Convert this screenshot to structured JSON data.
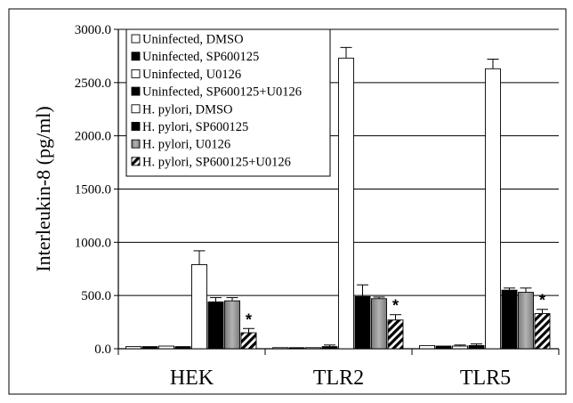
{
  "chart_data": {
    "type": "bar",
    "title": "",
    "xlabel": "",
    "ylabel": "Interleukin-8 (pg/ml)",
    "ylim": [
      0,
      3000
    ],
    "yticks": [
      "0.0",
      "500.0",
      "1000.0",
      "1500.0",
      "2000.0",
      "2500.0",
      "3000.0"
    ],
    "yticks_values": [
      0,
      500,
      1000,
      1500,
      2000,
      2500,
      3000
    ],
    "grid": true,
    "legend_position": "top-left",
    "categories": [
      "HEK",
      "TLR2",
      "TLR5"
    ],
    "series": [
      {
        "name": "Uninfected, DMSO",
        "fill": "white",
        "values": [
          20,
          10,
          30
        ],
        "errors": [
          0,
          0,
          0
        ]
      },
      {
        "name": "Uninfected, SP600125",
        "fill": "black",
        "values": [
          20,
          10,
          25
        ],
        "errors": [
          0,
          0,
          0
        ]
      },
      {
        "name": "Uninfected, U0126",
        "fill": "white",
        "values": [
          25,
          10,
          25
        ],
        "errors": [
          0,
          0,
          10
        ]
      },
      {
        "name": "Uninfected, SP600125+U0126",
        "fill": "black",
        "values": [
          20,
          20,
          30
        ],
        "errors": [
          0,
          15,
          15
        ]
      },
      {
        "name": "H. pylori, DMSO",
        "fill": "white",
        "values": [
          790,
          2730,
          2630
        ],
        "errors": [
          130,
          100,
          90
        ]
      },
      {
        "name": "H. pylori, SP600125",
        "fill": "black",
        "values": [
          440,
          490,
          550
        ],
        "errors": [
          40,
          110,
          20
        ]
      },
      {
        "name": "H. pylori, U0126",
        "fill": "gray",
        "values": [
          450,
          470,
          530
        ],
        "errors": [
          30,
          15,
          40
        ]
      },
      {
        "name": "H. pylori, SP600125+U0126",
        "fill": "hatch",
        "values": [
          150,
          270,
          330
        ],
        "errors": [
          40,
          50,
          40
        ]
      }
    ],
    "annotations": [
      {
        "text": "*",
        "category": "HEK",
        "series": 7
      },
      {
        "text": "*",
        "category": "TLR2",
        "series": 7
      },
      {
        "text": "*",
        "category": "TLR5",
        "series": 7
      }
    ]
  }
}
